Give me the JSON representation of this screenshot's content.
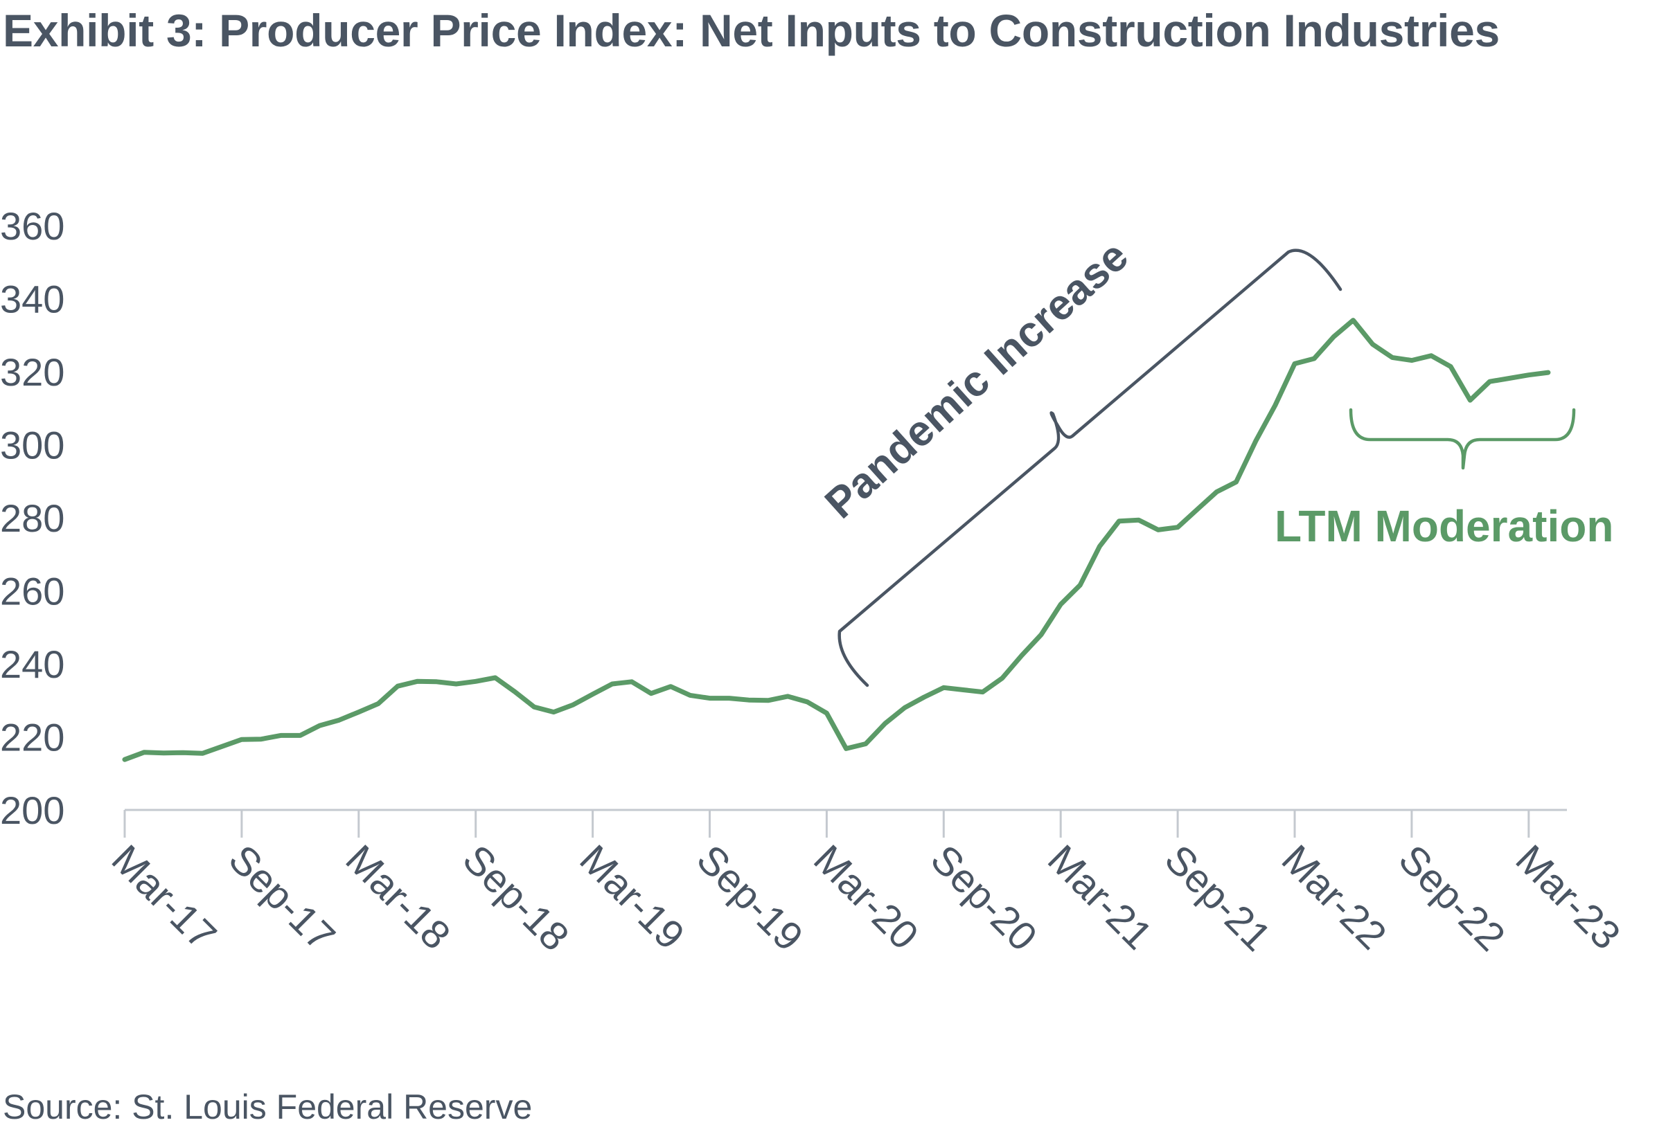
{
  "title": "Exhibit 3: Producer Price Index: Net Inputs to Construction Industries",
  "source": "Source: St. Louis Federal Reserve",
  "chart_data": {
    "type": "line",
    "title": "Exhibit 3: Producer Price Index: Net Inputs to Construction Industries",
    "xlabel": "",
    "ylabel": "",
    "ylim": [
      200,
      360
    ],
    "yticks": [
      200,
      220,
      240,
      260,
      280,
      300,
      320,
      340,
      360
    ],
    "xticks": [
      "Mar-17",
      "Sep-17",
      "Mar-18",
      "Sep-18",
      "Mar-19",
      "Sep-19",
      "Mar-20",
      "Sep-20",
      "Mar-21",
      "Sep-21",
      "Mar-22",
      "Sep-22",
      "Mar-23"
    ],
    "grid": false,
    "legend": "none",
    "series": [
      {
        "name": "",
        "color": "#5b9a67",
        "x": [
          "Mar-17",
          "Apr-17",
          "May-17",
          "Jun-17",
          "Jul-17",
          "Aug-17",
          "Sep-17",
          "Oct-17",
          "Nov-17",
          "Dec-17",
          "Jan-18",
          "Feb-18",
          "Mar-18",
          "Apr-18",
          "May-18",
          "Jun-18",
          "Jul-18",
          "Aug-18",
          "Sep-18",
          "Oct-18",
          "Nov-18",
          "Dec-18",
          "Jan-19",
          "Feb-19",
          "Mar-19",
          "Apr-19",
          "May-19",
          "Jun-19",
          "Jul-19",
          "Aug-19",
          "Sep-19",
          "Oct-19",
          "Nov-19",
          "Dec-19",
          "Jan-20",
          "Feb-20",
          "Mar-20",
          "Apr-20",
          "May-20",
          "Jun-20",
          "Jul-20",
          "Aug-20",
          "Sep-20",
          "Oct-20",
          "Nov-20",
          "Dec-20",
          "Jan-21",
          "Feb-21",
          "Mar-21",
          "Apr-21",
          "May-21",
          "Jun-21",
          "Jul-21",
          "Aug-21",
          "Sep-21",
          "Oct-21",
          "Nov-21",
          "Dec-21",
          "Jan-22",
          "Feb-22",
          "Mar-22",
          "Apr-22",
          "May-22",
          "Jun-22",
          "Jul-22",
          "Aug-22",
          "Sep-22",
          "Oct-22",
          "Nov-22",
          "Dec-22",
          "Jan-23",
          "Feb-23",
          "Mar-23",
          "Apr-23"
        ],
        "values": [
          213.8,
          215.8,
          215.6,
          215.7,
          215.5,
          217.4,
          219.3,
          219.4,
          220.4,
          220.4,
          223.1,
          224.6,
          226.8,
          229.1,
          233.9,
          235.2,
          235.1,
          234.5,
          235.2,
          236.2,
          232.4,
          228.2,
          226.8,
          228.8,
          231.7,
          234.5,
          235.1,
          231.9,
          233.8,
          231.4,
          230.6,
          230.6,
          230.1,
          230.0,
          231.1,
          229.6,
          226.5,
          216.8,
          218.1,
          223.7,
          228.0,
          230.9,
          233.5,
          232.9,
          232.3,
          236.1,
          242.3,
          248.0,
          256.3,
          261.6,
          272.2,
          279.1,
          279.4,
          276.7,
          277.4,
          282.3,
          287.1,
          289.8,
          301.0,
          310.8,
          322.2,
          323.6,
          329.6,
          334.1,
          327.5,
          323.9,
          323.1,
          324.4,
          321.4,
          312.2,
          317.3,
          318.2,
          319.1,
          319.8
        ]
      }
    ],
    "annotations": [
      {
        "text": "Pandemic Increase",
        "color": "#4a5563",
        "spans": [
          "Mar-20",
          "Mar-22"
        ]
      },
      {
        "text": "LTM Moderation",
        "color": "#5b9a67",
        "spans": [
          "Apr-22",
          "Apr-23"
        ]
      }
    ]
  }
}
